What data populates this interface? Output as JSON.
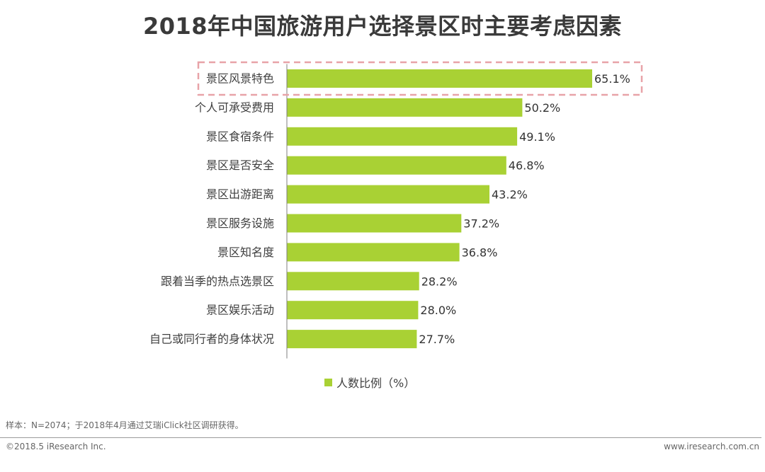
{
  "colors": {
    "bar": "#a9d134",
    "highlight": "#e8a3a8",
    "axis": "#7f7f7f"
  },
  "chart_data": {
    "type": "bar",
    "orientation": "horizontal",
    "title": "2018年中国旅游用户选择景区时主要考虑因素",
    "categories": [
      "景区风景特色",
      "个人可承受费用",
      "景区食宿条件",
      "景区是否安全",
      "景区出游距离",
      "景区服务设施",
      "景区知名度",
      "跟着当季的热点选景区",
      "景区娱乐活动",
      "自己或同行者的身体状况"
    ],
    "series": [
      {
        "name": "人数比例（%）",
        "values": [
          65.1,
          50.2,
          49.1,
          46.8,
          43.2,
          37.2,
          36.8,
          28.2,
          28.0,
          27.7
        ]
      }
    ],
    "value_labels": [
      "65.1%",
      "50.2%",
      "49.1%",
      "46.8%",
      "43.2%",
      "37.2%",
      "36.8%",
      "28.2%",
      "28.0%",
      "27.7%"
    ],
    "highlighted_category": "景区风景特色",
    "xlim": [
      0,
      70
    ],
    "grid": false,
    "legend_position": "bottom-center"
  },
  "footer": {
    "note": "样本：N=2074；于2018年4月通过艾瑞iClick社区调研获得。",
    "copyright": "©2018.5 iResearch Inc.",
    "website": "www.iresearch.com.cn"
  }
}
